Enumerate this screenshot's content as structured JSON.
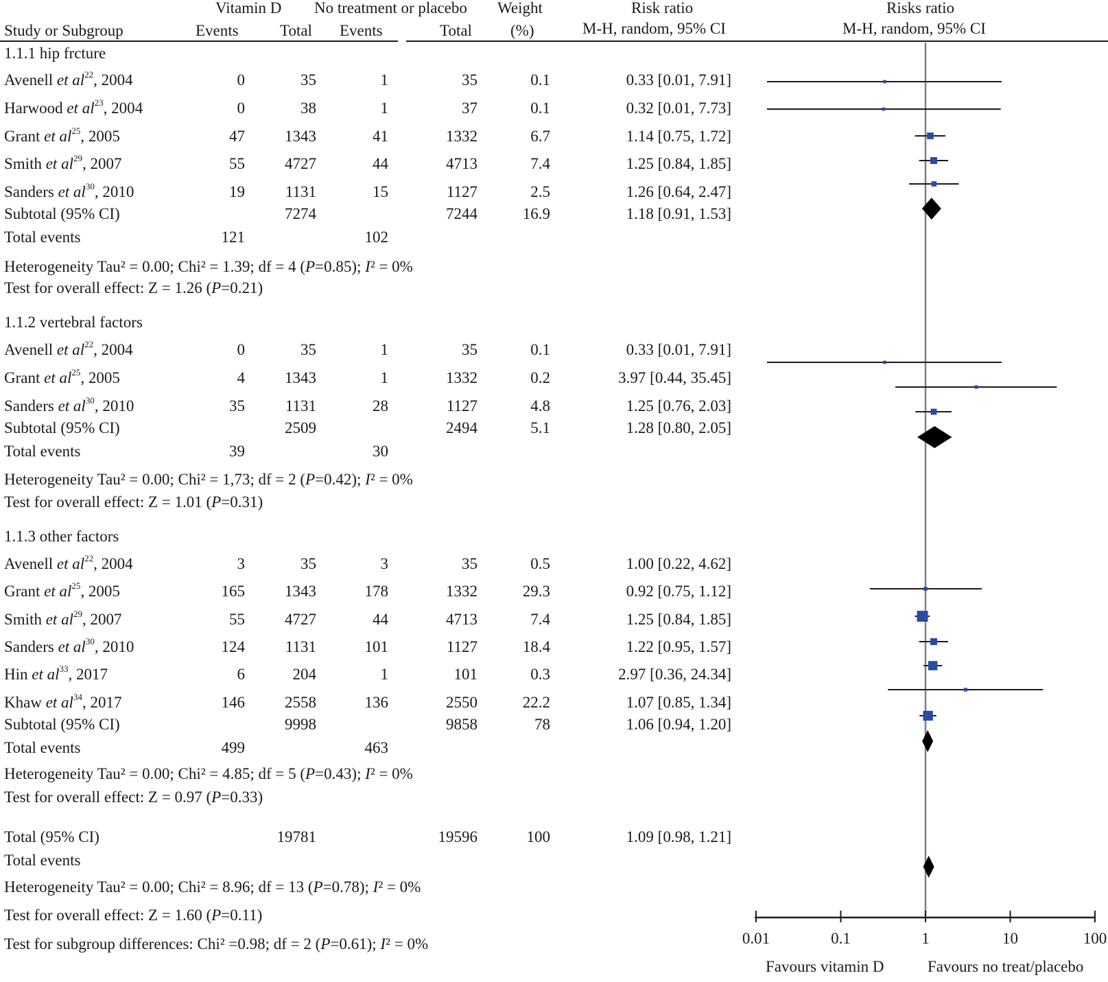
{
  "header": {
    "vitd": "Vitamin D",
    "ctrl": "No treatment or placebo",
    "weight_top": "Weight",
    "rr_top": "Risk ratio",
    "plot_top": "Risks ratio",
    "study": "Study or Subgroup",
    "events_a": "Events",
    "total_a": "Total",
    "events_b": "Events",
    "total_b": "Total",
    "weight_unit": "(%)",
    "rr_method": "M-H, random, 95% CI",
    "plot_method": "M-H, random, 95% CI"
  },
  "et_al": "et al",
  "groups": [
    {
      "title": "1.1.1 hip frcture",
      "studies": [
        {
          "author": "Avenell",
          "ref": "22",
          "year": ", 2004",
          "ev_a": "0",
          "tot_a": "35",
          "ev_b": "1",
          "tot_b": "35",
          "weight": "0.1",
          "ci": "0.33 [0.01, 7.91]"
        },
        {
          "author": "Harwood",
          "ref": "23",
          "year": ", 2004",
          "ev_a": "0",
          "tot_a": "38",
          "ev_b": "1",
          "tot_b": "37",
          "weight": "0.1",
          "ci": "0.32 [0.01, 7.73]"
        },
        {
          "author": "Grant",
          "ref": "25",
          "year": ", 2005",
          "ev_a": "47",
          "tot_a": "1343",
          "ev_b": "41",
          "tot_b": "1332",
          "weight": "6.7",
          "ci": "1.14 [0.75, 1.72]"
        },
        {
          "author": "Smith",
          "ref": "29",
          "year": ", 2007",
          "ev_a": "55",
          "tot_a": "4727",
          "ev_b": "44",
          "tot_b": "4713",
          "weight": "7.4",
          "ci": "1.25 [0.84, 1.85]"
        },
        {
          "author": "Sanders",
          "ref": "30",
          "year": ", 2010",
          "ev_a": "19",
          "tot_a": "1131",
          "ev_b": "15",
          "tot_b": "1127",
          "weight": "2.5",
          "ci": "1.26 [0.64, 2.47]"
        }
      ],
      "subtotal": {
        "label": "Subtotal (95% CI)",
        "tot_a": "7274",
        "tot_b": "7244",
        "weight": "16.9",
        "ci": "1.18 [0.91, 1.53]"
      },
      "events": {
        "label": "Total events",
        "a": "121",
        "b": "102"
      },
      "heterogeneity": {
        "text": "Heterogeneity Tau² = 0.00; Chi² = 1.39; df = 4 (",
        "p": "P",
        "p_rest": "=0.85); ",
        "i": "I",
        "i_rest": "² = 0%"
      },
      "overall": {
        "text": "Test for overall effect: Z = 1.26 (",
        "p": "P",
        "p_rest": "=0.21)"
      }
    },
    {
      "title": "1.1.2 vertebral factors",
      "studies": [
        {
          "author": "Avenell",
          "ref": "22",
          "year": ", 2004",
          "ev_a": "0",
          "tot_a": "35",
          "ev_b": "1",
          "tot_b": "35",
          "weight": "0.1",
          "ci": "0.33 [0.01, 7.91]"
        },
        {
          "author": "Grant",
          "ref": "25",
          "year": ", 2005",
          "ev_a": "4",
          "tot_a": "1343",
          "ev_b": "1",
          "tot_b": "1332",
          "weight": "0.2",
          "ci": "3.97 [0.44, 35.45]"
        },
        {
          "author": "Sanders",
          "ref": "30",
          "year": ", 2010",
          "ev_a": "35",
          "tot_a": "1131",
          "ev_b": "28",
          "tot_b": "1127",
          "weight": "4.8",
          "ci": "1.25 [0.76, 2.03]"
        }
      ],
      "subtotal": {
        "label": "Subtotal (95% CI)",
        "tot_a": "2509",
        "tot_b": "2494",
        "weight": "5.1",
        "ci": "1.28 [0.80, 2.05]"
      },
      "events": {
        "label": "Total events",
        "a": "39",
        "b": "30"
      },
      "heterogeneity": {
        "text": "Heterogeneity Tau² = 0.00; Chi² = 1,73; df = 2 (",
        "p": "P",
        "p_rest": "=0.42); ",
        "i": "I",
        "i_rest": "² = 0%"
      },
      "overall": {
        "text": "Test for overall effect: Z = 1.01 (",
        "p": "P",
        "p_rest": "=0.31)"
      }
    },
    {
      "title": "1.1.3 other factors",
      "studies": [
        {
          "author": "Avenell",
          "ref": "22",
          "year": ", 2004",
          "ev_a": "3",
          "tot_a": "35",
          "ev_b": "3",
          "tot_b": "35",
          "weight": "0.5",
          "ci": "1.00 [0.22, 4.62]"
        },
        {
          "author": "Grant",
          "ref": "25",
          "year": ", 2005",
          "ev_a": "165",
          "tot_a": "1343",
          "ev_b": "178",
          "tot_b": "1332",
          "weight": "29.3",
          "ci": "0.92 [0.75, 1.12]"
        },
        {
          "author": "Smith",
          "ref": "29",
          "year": ", 2007",
          "ev_a": "55",
          "tot_a": "4727",
          "ev_b": "44",
          "tot_b": "4713",
          "weight": "7.4",
          "ci": "1.25 [0.84, 1.85]"
        },
        {
          "author": "Sanders",
          "ref": "30",
          "year": ", 2010",
          "ev_a": "124",
          "tot_a": "1131",
          "ev_b": "101",
          "tot_b": "1127",
          "weight": "18.4",
          "ci": "1.22 [0.95, 1.57]"
        },
        {
          "author": "Hin",
          "ref": "33",
          "year": ", 2017",
          "ev_a": "6",
          "tot_a": "204",
          "ev_b": "1",
          "tot_b": "101",
          "weight": "0.3",
          "ci": "2.97 [0.36, 24.34]"
        },
        {
          "author": "Khaw",
          "ref": "34",
          "year": ", 2017",
          "ev_a": "146",
          "tot_a": "2558",
          "ev_b": "136",
          "tot_b": "2550",
          "weight": "22.2",
          "ci": "1.07 [0.85, 1.34]"
        }
      ],
      "subtotal": {
        "label": "Subtotal (95% CI)",
        "tot_a": "9998",
        "tot_b": "9858",
        "weight": "78",
        "ci": "1.06 [0.94, 1.20]"
      },
      "events": {
        "label": "Total events",
        "a": "499",
        "b": "463"
      },
      "heterogeneity": {
        "text": "Heterogeneity Tau² = 0.00; Chi² = 4.85; df = 5 (",
        "p": "P",
        "p_rest": "=0.43); ",
        "i": "I",
        "i_rest": "² = 0%"
      },
      "overall": {
        "text": "Test for overall effect: Z = 0.97 (",
        "p": "P",
        "p_rest": "=0.33)"
      }
    }
  ],
  "total": {
    "label": "Total (95% CI)",
    "tot_a": "19781",
    "tot_b": "19596",
    "weight": "100",
    "ci": "1.09 [0.98, 1.21]"
  },
  "total_events": {
    "label": "Total events"
  },
  "total_heterogeneity": {
    "text": "Heterogeneity Tau² = 0.00; Chi² = 8.96; df = 13 (",
    "p": "P",
    "p_rest": "=0.78); ",
    "i": "I",
    "i_rest": "² = 0%"
  },
  "total_overall": {
    "text": "Test for overall effect: Z = 1.60 (",
    "p": "P",
    "p_rest": "=0.11)"
  },
  "subgroup_diff": {
    "text": "Test for subgroup differences: Chi² =0.98; df = 2 (",
    "p": "P",
    "p_rest": "=0.61); ",
    "i": "I",
    "i_rest": "² = 0%"
  },
  "chart_data": {
    "type": "forest",
    "title": "Risks ratio",
    "subtitle": "M-H, random, 95% CI",
    "x_scale": "log",
    "xlim": [
      0.01,
      100
    ],
    "ticks": [
      0.01,
      0.1,
      1,
      10,
      100
    ],
    "tick_labels": [
      "0.01",
      "0.1",
      "1",
      "10",
      "100"
    ],
    "reference_line": 1,
    "favours_left": "Favours vitamin D",
    "favours_right": "Favours no treat/placebo",
    "study_points": [
      {
        "label": "Avenell 2004 (hip)",
        "rr": 0.33,
        "lo": 0.01,
        "hi": 7.91,
        "weight": 0.1
      },
      {
        "label": "Harwood 2004 (hip)",
        "rr": 0.32,
        "lo": 0.01,
        "hi": 7.73,
        "weight": 0.1
      },
      {
        "label": "Grant 2005 (hip)",
        "rr": 1.14,
        "lo": 0.75,
        "hi": 1.72,
        "weight": 6.7
      },
      {
        "label": "Smith 2007 (hip)",
        "rr": 1.25,
        "lo": 0.84,
        "hi": 1.85,
        "weight": 7.4
      },
      {
        "label": "Sanders 2010 (hip)",
        "rr": 1.26,
        "lo": 0.64,
        "hi": 2.47,
        "weight": 2.5
      },
      {
        "label": "Avenell 2004 (vertebral)",
        "rr": 0.33,
        "lo": 0.01,
        "hi": 7.91,
        "weight": 0.1
      },
      {
        "label": "Grant 2005 (vertebral)",
        "rr": 3.97,
        "lo": 0.44,
        "hi": 35.45,
        "weight": 0.2
      },
      {
        "label": "Sanders 2010 (vertebral)",
        "rr": 1.25,
        "lo": 0.76,
        "hi": 2.03,
        "weight": 4.8
      },
      {
        "label": "Avenell 2004 (other)",
        "rr": 1.0,
        "lo": 0.22,
        "hi": 4.62,
        "weight": 0.5
      },
      {
        "label": "Grant 2005 (other)",
        "rr": 0.92,
        "lo": 0.75,
        "hi": 1.12,
        "weight": 29.3
      },
      {
        "label": "Smith 2007 (other)",
        "rr": 1.25,
        "lo": 0.84,
        "hi": 1.85,
        "weight": 7.4
      },
      {
        "label": "Sanders 2010 (other)",
        "rr": 1.22,
        "lo": 0.95,
        "hi": 1.57,
        "weight": 18.4
      },
      {
        "label": "Hin 2017 (other)",
        "rr": 2.97,
        "lo": 0.36,
        "hi": 24.34,
        "weight": 0.3
      },
      {
        "label": "Khaw 2017 (other)",
        "rr": 1.07,
        "lo": 0.85,
        "hi": 1.34,
        "weight": 22.2
      }
    ],
    "pooled": [
      {
        "label": "Subtotal hip",
        "rr": 1.18,
        "lo": 0.91,
        "hi": 1.53
      },
      {
        "label": "Subtotal vertebral",
        "rr": 1.28,
        "lo": 0.8,
        "hi": 2.05
      },
      {
        "label": "Subtotal other",
        "rr": 1.06,
        "lo": 0.94,
        "hi": 1.2
      },
      {
        "label": "Total",
        "rr": 1.09,
        "lo": 0.98,
        "hi": 1.21
      }
    ],
    "colors": {
      "marker": "#2b4aa3",
      "diamond": "#000000",
      "line": "#1a1a1a",
      "reference": "#808080"
    }
  }
}
